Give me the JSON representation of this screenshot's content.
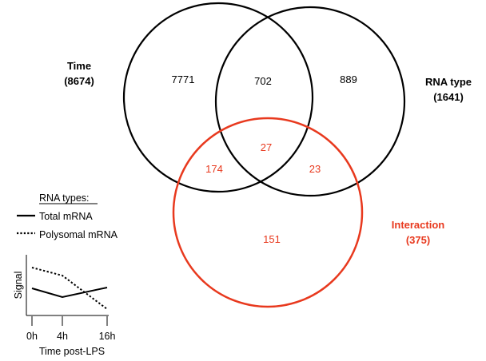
{
  "venn": {
    "time": {
      "title": "Time",
      "total": "(8674)",
      "only": "7771"
    },
    "rna_type": {
      "title": "RNA type",
      "total": "(1641)",
      "only": "889"
    },
    "interaction": {
      "title": "Interaction",
      "total": "(375)",
      "only": "151"
    },
    "time_rna": "702",
    "all_three": "27",
    "time_interaction": "174",
    "rna_interaction": "23",
    "colors": {
      "black": "#000000",
      "red": "#e8391e"
    }
  },
  "legend": {
    "title": "RNA types:",
    "items": [
      {
        "label": "Total mRNA",
        "style": "solid"
      },
      {
        "label": "Polysomal mRNA",
        "style": "dotted"
      }
    ]
  },
  "inset": {
    "ylabel": "Signal",
    "xlabel": "Time post-LPS",
    "ticks": [
      "0h",
      "4h",
      "16h"
    ]
  }
}
